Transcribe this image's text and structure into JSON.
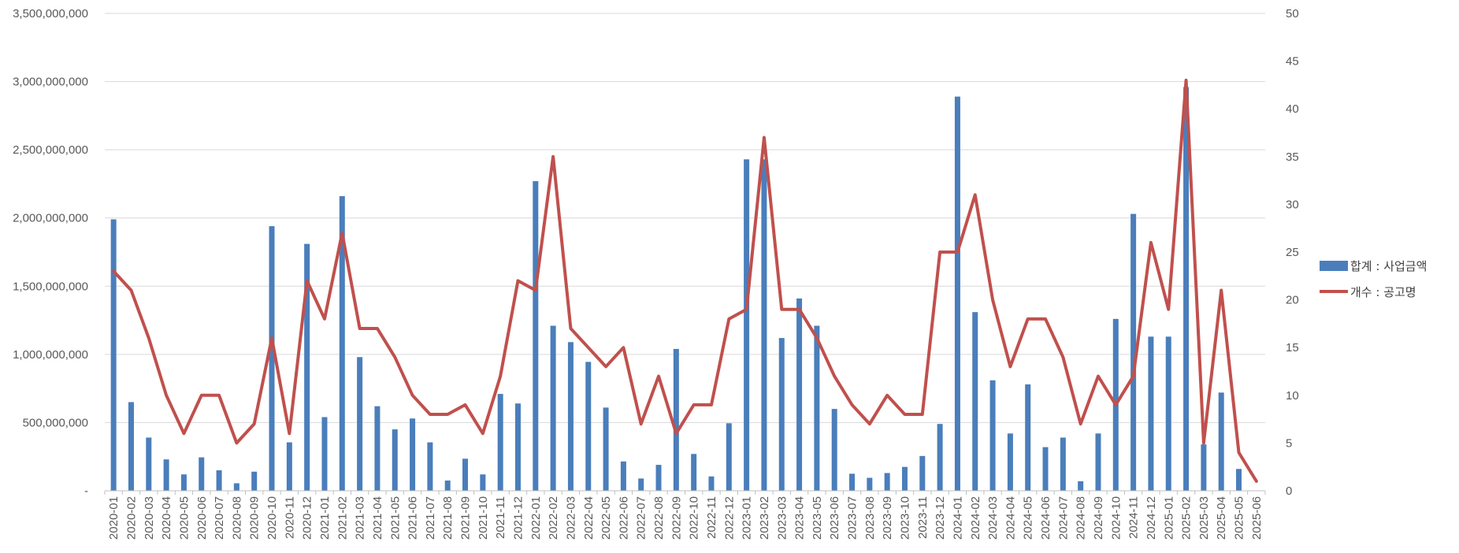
{
  "chart_data": {
    "type": "bar",
    "categories": [
      "2020-01",
      "2020-02",
      "2020-03",
      "2020-04",
      "2020-05",
      "2020-06",
      "2020-07",
      "2020-08",
      "2020-09",
      "2020-10",
      "2020-11",
      "2020-12",
      "2021-01",
      "2021-02",
      "2021-03",
      "2021-04",
      "2021-05",
      "2021-06",
      "2021-07",
      "2021-08",
      "2021-09",
      "2021-10",
      "2021-11",
      "2021-12",
      "2022-01",
      "2022-02",
      "2022-03",
      "2022-04",
      "2022-05",
      "2022-06",
      "2022-07",
      "2022-08",
      "2022-09",
      "2022-10",
      "2022-11",
      "2022-12",
      "2023-01",
      "2023-02",
      "2023-03",
      "2023-04",
      "2023-05",
      "2023-06",
      "2023-07",
      "2023-08",
      "2023-09",
      "2023-10",
      "2023-11",
      "2023-12",
      "2024-01",
      "2024-02",
      "2024-03",
      "2024-04",
      "2024-05",
      "2024-06",
      "2024-07",
      "2024-08",
      "2024-09",
      "2024-10",
      "2024-11",
      "2024-12",
      "2025-01",
      "2025-02",
      "2025-03",
      "2025-04",
      "2025-05",
      "2025-06"
    ],
    "series": [
      {
        "name": "합계 : 사업금액",
        "type": "bar",
        "axis": "left",
        "color": "#4a7ebb",
        "values": [
          1990000000,
          650000000,
          390000000,
          230000000,
          120000000,
          245000000,
          150000000,
          55000000,
          140000000,
          1940000000,
          355000000,
          1810000000,
          540000000,
          2160000000,
          980000000,
          620000000,
          450000000,
          530000000,
          355000000,
          75000000,
          235000000,
          120000000,
          710000000,
          640000000,
          2270000000,
          1210000000,
          1090000000,
          945000000,
          610000000,
          215000000,
          90000000,
          190000000,
          1040000000,
          270000000,
          105000000,
          495000000,
          2430000000,
          2430000000,
          1120000000,
          1410000000,
          1210000000,
          600000000,
          125000000,
          95000000,
          130000000,
          175000000,
          255000000,
          490000000,
          2890000000,
          1310000000,
          810000000,
          420000000,
          780000000,
          320000000,
          390000000,
          70000000,
          420000000,
          1260000000,
          2030000000,
          1130000000,
          1130000000,
          2960000000,
          340000000,
          720000000,
          160000000,
          0
        ]
      },
      {
        "name": "개수 : 공고명",
        "type": "line",
        "axis": "right",
        "color": "#c0504d",
        "values": [
          23,
          21,
          16,
          10,
          6,
          10,
          10,
          5,
          7,
          16,
          6,
          22,
          18,
          27,
          17,
          17,
          14,
          10,
          8,
          8,
          9,
          6,
          12,
          22,
          21,
          35,
          17,
          15,
          13,
          15,
          7,
          12,
          6,
          9,
          9,
          18,
          19,
          37,
          19,
          19,
          16,
          12,
          9,
          7,
          10,
          8,
          8,
          25,
          25,
          31,
          20,
          13,
          18,
          18,
          14,
          7,
          12,
          9,
          12,
          26,
          19,
          43,
          5,
          21,
          4,
          1
        ]
      }
    ],
    "y_left": {
      "range": [
        0,
        3500000000
      ],
      "ticks": [
        0,
        500000000,
        1000000000,
        1500000000,
        2000000000,
        2500000000,
        3000000000,
        3500000000
      ],
      "tick_labels": [
        "-",
        "500,000,000",
        "1,000,000,000",
        "1,500,000,000",
        "2,000,000,000",
        "2,500,000,000",
        "3,000,000,000",
        "3,500,000,000"
      ]
    },
    "y_right": {
      "range": [
        0,
        50
      ],
      "ticks": [
        0,
        5,
        10,
        15,
        20,
        25,
        30,
        35,
        40,
        45,
        50
      ],
      "tick_labels": [
        "0",
        "5",
        "10",
        "15",
        "20",
        "25",
        "30",
        "35",
        "40",
        "45",
        "50"
      ]
    },
    "grid": true,
    "legend_position": "right"
  }
}
